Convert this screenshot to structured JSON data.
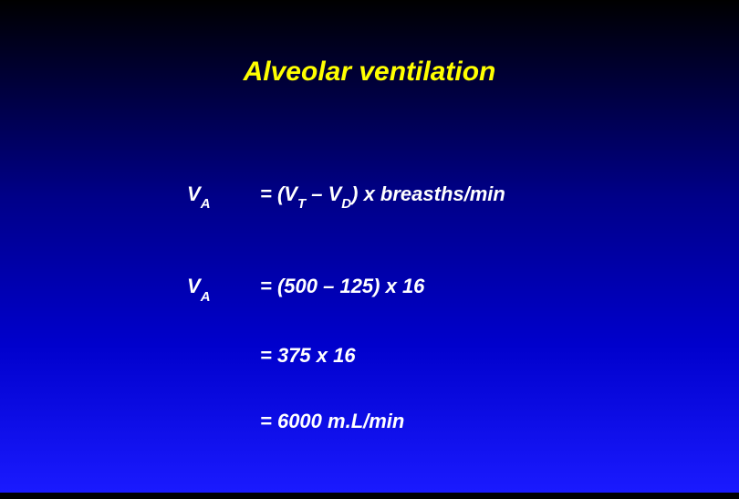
{
  "slide": {
    "title": "Alveolar ventilation",
    "title_color": "#ffff00",
    "text_color": "#ffffff",
    "background_gradient": {
      "top": "#000000",
      "bottom": "#1a1aff"
    },
    "font_style": "italic",
    "font_weight": "bold",
    "title_fontsize": 30,
    "body_fontsize": 22,
    "subscript_fontsize": 15,
    "lines": [
      {
        "symbol_base": "V",
        "symbol_sub": "A",
        "expr_prefix": "= (V",
        "expr_sub1": "T",
        "expr_mid": " – V",
        "expr_sub2": "D",
        "expr_suffix": ") x breasths/min"
      },
      {
        "symbol_base": "V",
        "symbol_sub": "A",
        "expr": "= (500 – 125) x 16"
      },
      {
        "expr": "= 375 x 16"
      },
      {
        "expr": "= 6000 m.L/min"
      }
    ]
  }
}
